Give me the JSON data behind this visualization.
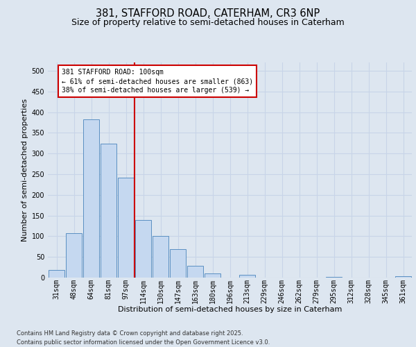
{
  "title_line1": "381, STAFFORD ROAD, CATERHAM, CR3 6NP",
  "title_line2": "Size of property relative to semi-detached houses in Caterham",
  "xlabel": "Distribution of semi-detached houses by size in Caterham",
  "ylabel": "Number of semi-detached properties",
  "categories": [
    "31sqm",
    "48sqm",
    "64sqm",
    "81sqm",
    "97sqm",
    "114sqm",
    "130sqm",
    "147sqm",
    "163sqm",
    "180sqm",
    "196sqm",
    "213sqm",
    "229sqm",
    "246sqm",
    "262sqm",
    "279sqm",
    "295sqm",
    "312sqm",
    "328sqm",
    "345sqm",
    "361sqm"
  ],
  "values": [
    19,
    108,
    382,
    323,
    241,
    140,
    101,
    68,
    29,
    10,
    0,
    6,
    0,
    0,
    0,
    0,
    2,
    0,
    0,
    0,
    3
  ],
  "bar_color": "#c5d8f0",
  "bar_edge_color": "#5a8fc2",
  "vline_color": "#cc0000",
  "vline_x_after_index": 4,
  "annotation_line1": "381 STAFFORD ROAD: 100sqm",
  "annotation_line2": "← 61% of semi-detached houses are smaller (863)",
  "annotation_line3": "38% of semi-detached houses are larger (539) →",
  "annotation_box_facecolor": "#ffffff",
  "annotation_box_edgecolor": "#cc0000",
  "ylim_max": 520,
  "grid_color": "#c8d4e8",
  "background_color": "#dde6f0",
  "footer_text": "Contains HM Land Registry data © Crown copyright and database right 2025.\nContains public sector information licensed under the Open Government Licence v3.0.",
  "title1_fontsize": 10.5,
  "title2_fontsize": 9,
  "axis_label_fontsize": 8,
  "tick_fontsize": 7,
  "annot_fontsize": 7,
  "footer_fontsize": 6
}
